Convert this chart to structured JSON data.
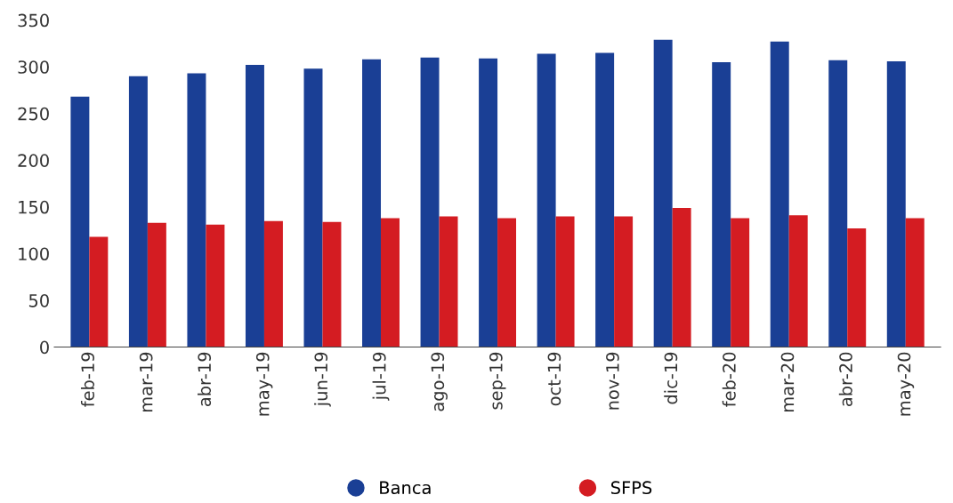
{
  "chart_data": {
    "type": "bar",
    "categories": [
      "feb-19",
      "mar-19",
      "abr-19",
      "may-19",
      "jun-19",
      "jul-19",
      "ago-19",
      "sep-19",
      "oct-19",
      "nov-19",
      "dic-19",
      "feb-20",
      "mar-20",
      "abr-20",
      "may-20"
    ],
    "series": [
      {
        "name": "Banca",
        "color": "#1a3f95",
        "values": [
          268,
          290,
          293,
          302,
          298,
          308,
          310,
          309,
          314,
          315,
          329,
          305,
          327,
          307,
          306
        ]
      },
      {
        "name": "SFPS",
        "color": "#d41c22",
        "values": [
          118,
          133,
          131,
          135,
          134,
          138,
          140,
          138,
          140,
          140,
          149,
          138,
          141,
          127,
          138
        ]
      }
    ],
    "ylim": [
      0,
      350
    ],
    "yticks": [
      0,
      50,
      100,
      150,
      200,
      250,
      300,
      350
    ],
    "grid": false,
    "legend": "bottom"
  }
}
